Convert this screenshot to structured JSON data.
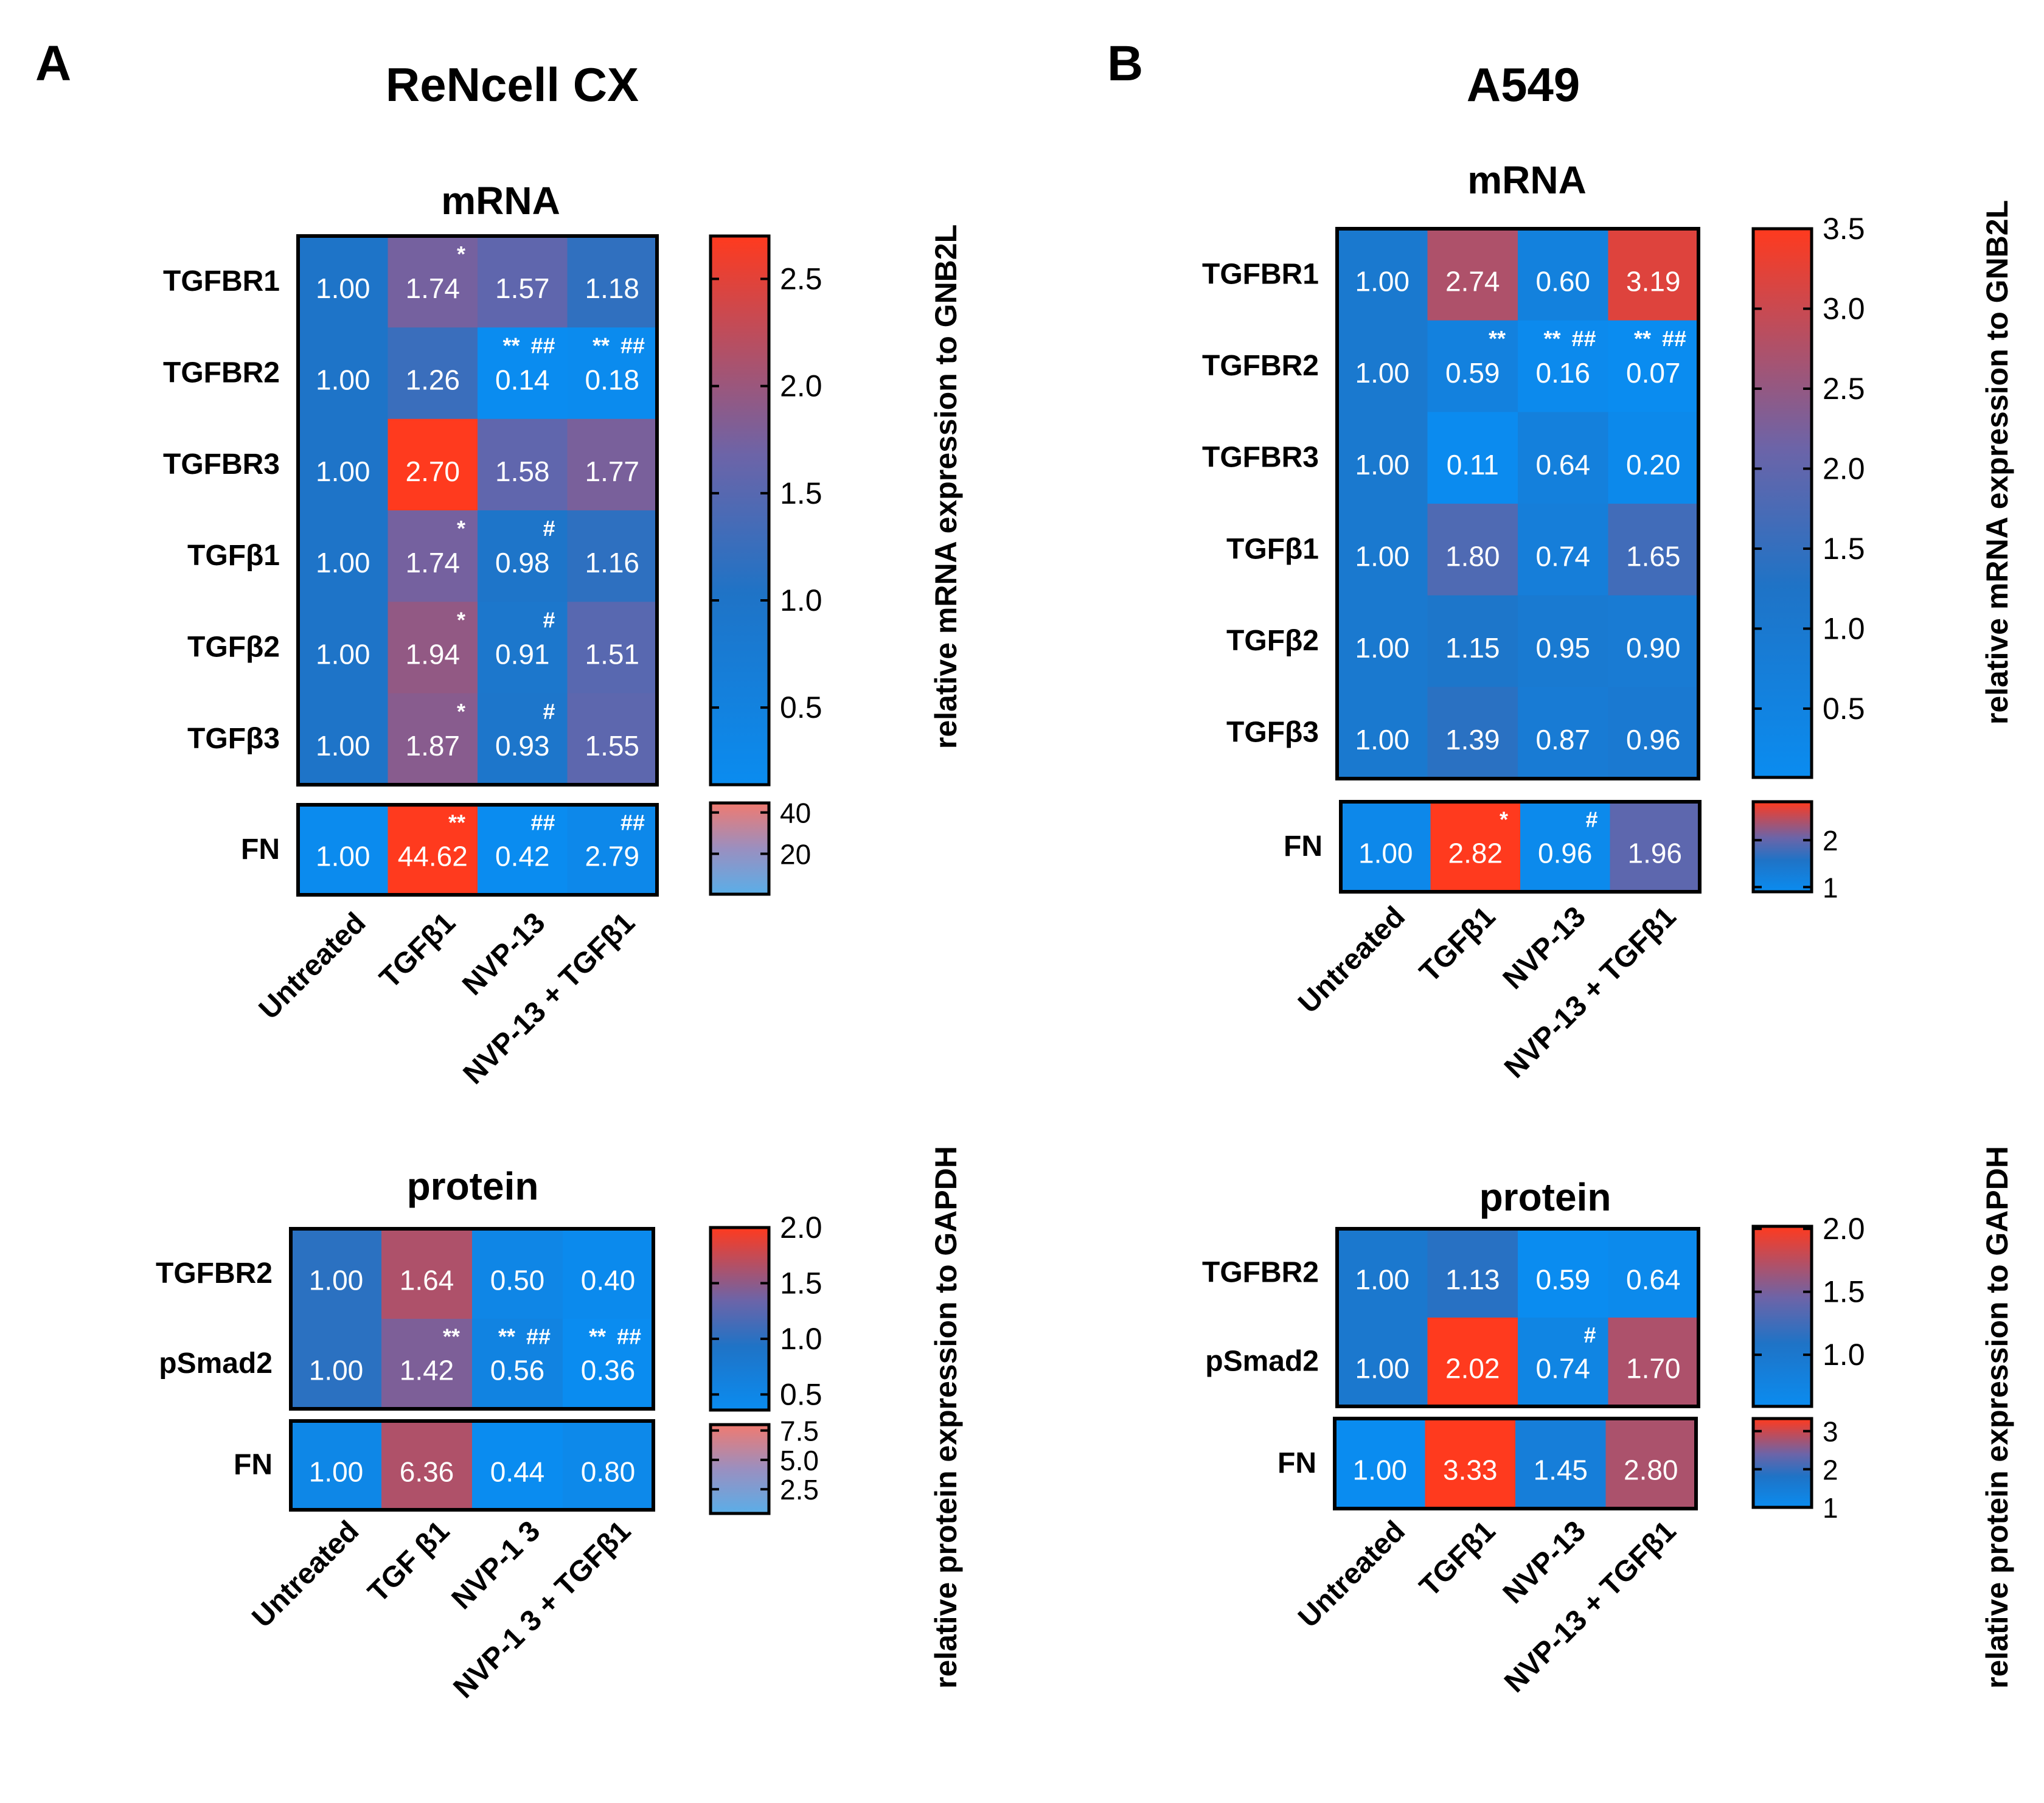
{
  "colors": {
    "low": "#0a8cf0",
    "mid": "#2e6fbf",
    "midPurple": "#6c64a8",
    "high": "#ff3a1e",
    "light_low": "#5aaee8",
    "light_high": "#f07a70"
  },
  "panels": [
    {
      "letter": "A",
      "title": "ReNcell CX",
      "charts": [
        {
          "id": "A-mrna",
          "subtitle": "mRNA",
          "columns": [
            "Untreated",
            "TGFβ1",
            "NVP-13",
            "NVP-13 + TGFβ1"
          ],
          "rows": [
            "TGFBR1",
            "TGFBR2",
            "TGFBR3",
            "TGFβ1",
            "TGFβ2",
            "TGFβ3"
          ],
          "values": [
            [
              1.0,
              1.74,
              1.57,
              1.18
            ],
            [
              1.0,
              1.26,
              0.14,
              0.18
            ],
            [
              1.0,
              2.7,
              1.58,
              1.77
            ],
            [
              1.0,
              1.74,
              0.98,
              1.16
            ],
            [
              1.0,
              1.94,
              0.91,
              1.51
            ],
            [
              1.0,
              1.87,
              0.93,
              1.55
            ]
          ],
          "labels": [
            [
              "1.00",
              "1.74",
              "1.57",
              "1.18"
            ],
            [
              "1.00",
              "1.26",
              "0.14",
              "0.18"
            ],
            [
              "1.00",
              "2.70",
              "1.58",
              "1.77"
            ],
            [
              "1.00",
              "1.74",
              "0.98",
              "1.16"
            ],
            [
              "1.00",
              "1.94",
              "0.91",
              "1.51"
            ],
            [
              "1.00",
              "1.87",
              "0.93",
              "1.55"
            ]
          ],
          "sig": [
            [
              "",
              "*",
              "",
              ""
            ],
            [
              "",
              "",
              "** ##",
              "** ##"
            ],
            [
              "",
              "",
              "",
              ""
            ],
            [
              "",
              "*",
              "#",
              ""
            ],
            [
              "",
              "*",
              "#",
              ""
            ],
            [
              "",
              "*",
              "#",
              ""
            ]
          ],
          "scale": {
            "min": 0.14,
            "max": 2.7,
            "ticks": [
              "2.5",
              "2.0",
              "1.5",
              "1.0",
              "0.5"
            ],
            "tickValues": [
              2.5,
              2.0,
              1.5,
              1.0,
              0.5
            ]
          },
          "fn": {
            "row": "FN",
            "values": [
              1.0,
              44.62,
              0.42,
              2.79
            ],
            "labels": [
              "1.00",
              "44.62",
              "0.42",
              "2.79"
            ],
            "sig": [
              "",
              "**",
              "##",
              "##"
            ],
            "scale": {
              "min": 0.42,
              "max": 44.62,
              "ticks": [
                "40",
                "20"
              ],
              "tickValues": [
                40,
                20
              ]
            }
          },
          "colorbar_label": "relative mRNA expression to GNB2L"
        },
        {
          "id": "A-protein",
          "subtitle": "protein",
          "columns": [
            "Untreated",
            "TGF  β1",
            "NVP-1  3",
            "NVP-1  3 + TGFβ1"
          ],
          "rows": [
            "TGFBR2",
            "pSmad2"
          ],
          "values": [
            [
              1.0,
              1.64,
              0.5,
              0.4
            ],
            [
              1.0,
              1.42,
              0.56,
              0.36
            ]
          ],
          "labels": [
            [
              "1.00",
              "1.64",
              "0.50",
              "0.40"
            ],
            [
              "1.00",
              "1.42",
              "0.56",
              "0.36"
            ]
          ],
          "sig": [
            [
              "",
              "",
              "",
              ""
            ],
            [
              "",
              "**",
              "** ##",
              "** ##"
            ]
          ],
          "scale": {
            "min": 0.36,
            "max": 2.0,
            "ticks": [
              "2.0",
              "1.5",
              "1.0",
              "0.5"
            ],
            "tickValues": [
              2.0,
              1.5,
              1.0,
              0.5
            ]
          },
          "fn": {
            "row": "FN",
            "values": [
              1.0,
              6.36,
              0.44,
              0.8
            ],
            "labels": [
              "1.00",
              "6.36",
              "0.44",
              "0.80"
            ],
            "sig": [
              "",
              "",
              "",
              ""
            ],
            "scale": {
              "min": 0.44,
              "max": 8.0,
              "ticks": [
                "7.5",
                "5.0",
                "2.5"
              ],
              "tickValues": [
                7.5,
                5.0,
                2.5
              ]
            }
          },
          "colorbar_label": "relative protein expression to GAPDH"
        }
      ]
    },
    {
      "letter": "B",
      "title": "A549",
      "charts": [
        {
          "id": "B-mrna",
          "subtitle": "mRNA",
          "columns": [
            "Untreated",
            "TGFβ1",
            "NVP-13",
            "NVP-13 + TGFβ1"
          ],
          "rows": [
            "TGFBR1",
            "TGFBR2",
            "TGFBR3",
            "TGFβ1",
            "TGFβ2",
            "TGFβ3"
          ],
          "values": [
            [
              1.0,
              2.74,
              0.6,
              3.19
            ],
            [
              1.0,
              0.59,
              0.16,
              0.07
            ],
            [
              1.0,
              0.11,
              0.64,
              0.2
            ],
            [
              1.0,
              1.8,
              0.74,
              1.65
            ],
            [
              1.0,
              1.15,
              0.95,
              0.9
            ],
            [
              1.0,
              1.39,
              0.87,
              0.96
            ]
          ],
          "labels": [
            [
              "1.00",
              "2.74",
              "0.60",
              "3.19"
            ],
            [
              "1.00",
              "0.59",
              "0.16",
              "0.07"
            ],
            [
              "1.00",
              "0.11",
              "0.64",
              "0.20"
            ],
            [
              "1.00",
              "1.80",
              "0.74",
              "1.65"
            ],
            [
              "1.00",
              "1.15",
              "0.95",
              "0.90"
            ],
            [
              "1.00",
              "1.39",
              "0.87",
              "0.96"
            ]
          ],
          "sig": [
            [
              "",
              "",
              "",
              ""
            ],
            [
              "",
              "**",
              "** ##",
              "** ##"
            ],
            [
              "",
              "",
              "",
              ""
            ],
            [
              "",
              "",
              "",
              ""
            ],
            [
              "",
              "",
              "",
              ""
            ],
            [
              "",
              "",
              "",
              ""
            ]
          ],
          "scale": {
            "min": 0.07,
            "max": 3.5,
            "ticks": [
              "3.5",
              "3.0",
              "2.5",
              "2.0",
              "1.5",
              "1.0",
              "0.5"
            ],
            "tickValues": [
              3.5,
              3.0,
              2.5,
              2.0,
              1.5,
              1.0,
              0.5
            ]
          },
          "fn": {
            "row": "FN",
            "values": [
              1.0,
              2.82,
              0.96,
              1.96
            ],
            "labels": [
              "1.00",
              "2.82",
              "0.96",
              "1.96"
            ],
            "sig": [
              "",
              "*",
              "#",
              ""
            ],
            "scale": {
              "min": 0.9,
              "max": 2.82,
              "ticks": [
                "2",
                "1"
              ],
              "tickValues": [
                2,
                1
              ]
            }
          },
          "colorbar_label": "relative mRNA expression to GNB2L"
        },
        {
          "id": "B-protein",
          "subtitle": "protein",
          "columns": [
            "Untreated",
            "TGFβ1",
            "NVP-13",
            "NVP-13 + TGFβ1"
          ],
          "rows": [
            "TGFBR2",
            "pSmad2"
          ],
          "values": [
            [
              1.0,
              1.13,
              0.59,
              0.64
            ],
            [
              1.0,
              2.02,
              0.74,
              1.7
            ]
          ],
          "labels": [
            [
              "1.00",
              "1.13",
              "0.59",
              "0.64"
            ],
            [
              "1.00",
              "2.02",
              "0.74",
              "1.70"
            ]
          ],
          "sig": [
            [
              "",
              "",
              "",
              ""
            ],
            [
              "",
              "",
              "#",
              ""
            ]
          ],
          "scale": {
            "min": 0.59,
            "max": 2.02,
            "ticks": [
              "2.0",
              "1.5",
              "1.0"
            ],
            "tickValues": [
              2.0,
              1.5,
              1.0
            ]
          },
          "fn": {
            "row": "FN",
            "values": [
              1.0,
              3.33,
              1.45,
              2.8
            ],
            "labels": [
              "1.00",
              "3.33",
              "1.45",
              "2.80"
            ],
            "sig": [
              "",
              "",
              "",
              ""
            ],
            "scale": {
              "min": 1.0,
              "max": 3.33,
              "ticks": [
                "3",
                "2",
                "1"
              ],
              "tickValues": [
                3,
                2,
                1
              ]
            }
          },
          "colorbar_label": "relative protein expression to GAPDH"
        }
      ]
    }
  ],
  "chart_data": [
    {
      "type": "heatmap",
      "title": "ReNcell CX — mRNA",
      "categories": [
        "Untreated",
        "TGFβ1",
        "NVP-13",
        "NVP-13 + TGFβ1"
      ],
      "series": [
        {
          "name": "TGFBR1",
          "values": [
            1.0,
            1.74,
            1.57,
            1.18
          ]
        },
        {
          "name": "TGFBR2",
          "values": [
            1.0,
            1.26,
            0.14,
            0.18
          ]
        },
        {
          "name": "TGFBR3",
          "values": [
            1.0,
            2.7,
            1.58,
            1.77
          ]
        },
        {
          "name": "TGFβ1",
          "values": [
            1.0,
            1.74,
            0.98,
            1.16
          ]
        },
        {
          "name": "TGFβ2",
          "values": [
            1.0,
            1.94,
            0.91,
            1.51
          ]
        },
        {
          "name": "TGFβ3",
          "values": [
            1.0,
            1.87,
            0.93,
            1.55
          ]
        },
        {
          "name": "FN",
          "values": [
            1.0,
            44.62,
            0.42,
            2.79
          ]
        }
      ],
      "colorbar_label": "relative mRNA expression to GNB2L"
    },
    {
      "type": "heatmap",
      "title": "ReNcell CX — protein",
      "categories": [
        "Untreated",
        "TGF  β1",
        "NVP-1  3",
        "NVP-1  3 + TGFβ1"
      ],
      "series": [
        {
          "name": "TGFBR2",
          "values": [
            1.0,
            1.64,
            0.5,
            0.4
          ]
        },
        {
          "name": "pSmad2",
          "values": [
            1.0,
            1.42,
            0.56,
            0.36
          ]
        },
        {
          "name": "FN",
          "values": [
            1.0,
            6.36,
            0.44,
            0.8
          ]
        }
      ],
      "colorbar_label": "relative protein expression to GAPDH"
    },
    {
      "type": "heatmap",
      "title": "A549 — mRNA",
      "categories": [
        "Untreated",
        "TGFβ1",
        "NVP-13",
        "NVP-13 + TGFβ1"
      ],
      "series": [
        {
          "name": "TGFBR1",
          "values": [
            1.0,
            2.74,
            0.6,
            3.19
          ]
        },
        {
          "name": "TGFBR2",
          "values": [
            1.0,
            0.59,
            0.16,
            0.07
          ]
        },
        {
          "name": "TGFBR3",
          "values": [
            1.0,
            0.11,
            0.64,
            0.2
          ]
        },
        {
          "name": "TGFβ1",
          "values": [
            1.0,
            1.8,
            0.74,
            1.65
          ]
        },
        {
          "name": "TGFβ2",
          "values": [
            1.0,
            1.15,
            0.95,
            0.9
          ]
        },
        {
          "name": "TGFβ3",
          "values": [
            1.0,
            1.39,
            0.87,
            0.96
          ]
        },
        {
          "name": "FN",
          "values": [
            1.0,
            2.82,
            0.96,
            1.96
          ]
        }
      ],
      "colorbar_label": "relative mRNA expression to GNB2L"
    },
    {
      "type": "heatmap",
      "title": "A549 — protein",
      "categories": [
        "Untreated",
        "TGFβ1",
        "NVP-13",
        "NVP-13 + TGFβ1"
      ],
      "series": [
        {
          "name": "TGFBR2",
          "values": [
            1.0,
            1.13,
            0.59,
            0.64
          ]
        },
        {
          "name": "pSmad2",
          "values": [
            1.0,
            2.02,
            0.74,
            1.7
          ]
        },
        {
          "name": "FN",
          "values": [
            1.0,
            3.33,
            1.45,
            2.8
          ]
        }
      ],
      "colorbar_label": "relative protein expression to GAPDH"
    }
  ]
}
